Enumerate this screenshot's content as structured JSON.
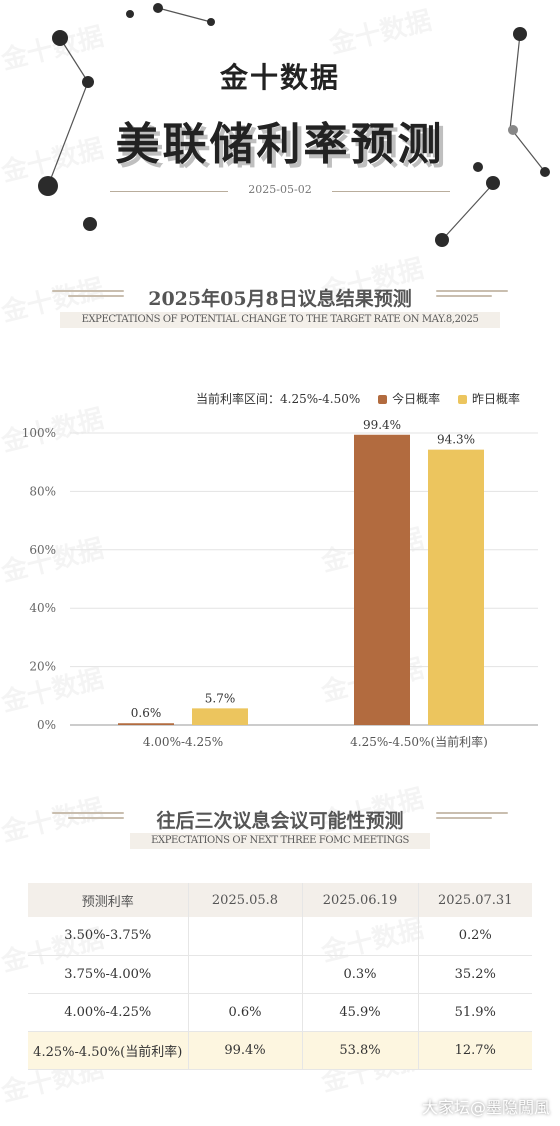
{
  "header": {
    "brand": "金十数据",
    "title": "美联储利率预测",
    "date": "2025-05-02",
    "watermark": "金十数据"
  },
  "section1": {
    "title": "2025年05月8日议息结果预测",
    "subtitle": "EXPECTATIONS OF POTENTIAL CHANGE TO THE TARGET RATE ON MAY.8,2025"
  },
  "chart_data": {
    "type": "bar",
    "annotation": "当前利率区间：4.25%-4.50%",
    "categories": [
      "4.00%-4.25%",
      "4.25%-4.50%(当前利率)"
    ],
    "series": [
      {
        "name": "今日概率",
        "values": [
          0.6,
          99.4
        ],
        "color": "#b26b3f"
      },
      {
        "name": "昨日概率",
        "values": [
          5.7,
          94.3
        ],
        "color": "#ecc55e"
      }
    ],
    "value_labels": [
      [
        "0.6%",
        "99.4%"
      ],
      [
        "5.7%",
        "94.3%"
      ]
    ],
    "yticks": [
      "0%",
      "20%",
      "40%",
      "60%",
      "80%",
      "100%"
    ],
    "ylim": [
      0,
      100
    ],
    "grid": true,
    "legend": "top-right"
  },
  "section2": {
    "title": "往后三次议息会议可能性预测",
    "subtitle": "EXPECTATIONS OF NEXT THREE FOMC MEETINGS"
  },
  "table": {
    "headers": [
      "预测利率",
      "2025.05.8",
      "2025.06.19",
      "2025.07.31"
    ],
    "rows": [
      [
        "3.50%-3.75%",
        "",
        "",
        "0.2%"
      ],
      [
        "3.75%-4.00%",
        "",
        "0.3%",
        "35.2%"
      ],
      [
        "4.00%-4.25%",
        "0.6%",
        "45.9%",
        "51.9%"
      ],
      [
        "4.25%-4.50%(当前利率)",
        "99.4%",
        "53.8%",
        "12.7%"
      ]
    ]
  },
  "footer": {
    "credit": "大家坛@墨隐闖風"
  }
}
